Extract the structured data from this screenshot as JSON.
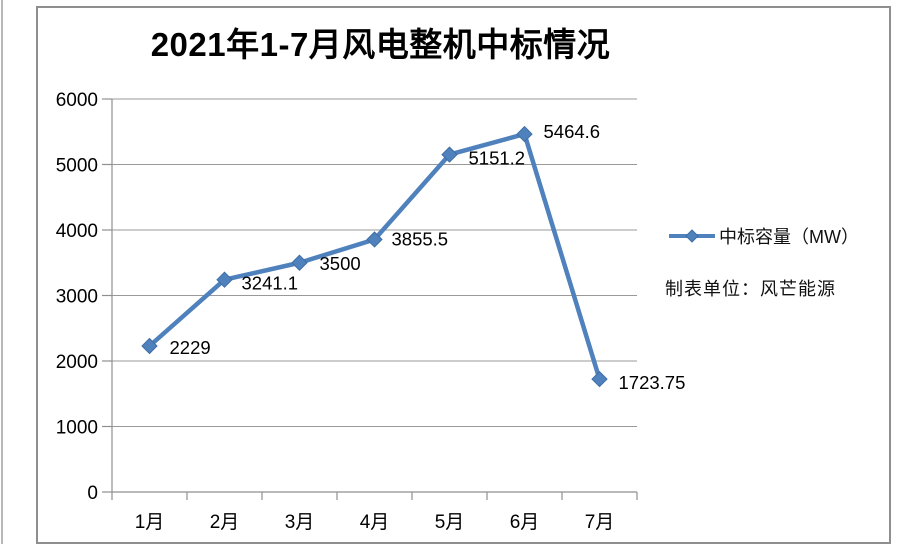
{
  "chart": {
    "title": "2021年1-7月风电整机中标情况",
    "legend_label": "中标容量（MW）",
    "note": "制表单位：风芒能源",
    "series_color": "#4F81BD",
    "marker_edge_color": "#3f6ea5",
    "axis_color": "#8f8f8f",
    "gridline_color": "#999999",
    "text_color": "#000000"
  },
  "chart_data": {
    "type": "line",
    "title": "2021年1-7月风电整机中标情况",
    "categories": [
      "1月",
      "2月",
      "3月",
      "4月",
      "5月",
      "6月",
      "7月"
    ],
    "series": [
      {
        "name": "中标容量（MW）",
        "values": [
          2229,
          3241.1,
          3500,
          3855.5,
          5151.2,
          5464.6,
          1723.75
        ],
        "data_labels": [
          "2229",
          "3241.1",
          "3500",
          "3855.5",
          "5151.2",
          "5464.6",
          "1723.75"
        ]
      }
    ],
    "xlabel": "",
    "ylabel": "",
    "ylim": [
      0,
      6000
    ],
    "ytick_step": 1000,
    "yticks": [
      "0",
      "1000",
      "2000",
      "3000",
      "4000",
      "5000",
      "6000"
    ],
    "grid": true,
    "marker": "diamond",
    "legend_position": "right",
    "annotations": [
      "制表单位：风芒能源"
    ]
  }
}
